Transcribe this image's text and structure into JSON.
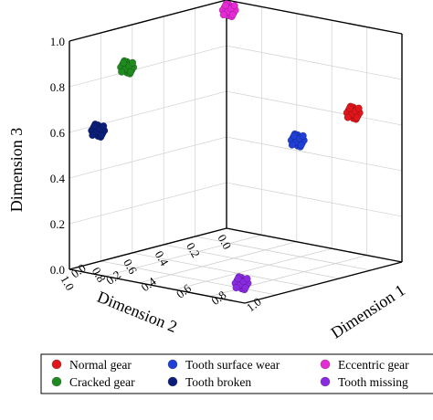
{
  "chart_data": {
    "type": "scatter",
    "dimensions": 3,
    "xlabel": "Dimension 1",
    "ylabel": "Dimension 2",
    "zlabel": "Dimension 3",
    "xlim": [
      0,
      1
    ],
    "ylim": [
      0,
      1
    ],
    "zlim": [
      0,
      1
    ],
    "ticks": [
      "0.0",
      "0.2",
      "0.4",
      "0.6",
      "0.8",
      "1.0"
    ],
    "grid": true,
    "legend_position": "bottom",
    "series": [
      {
        "name": "Normal gear",
        "color": "#e0161b",
        "centroid": {
          "x": 0.83,
          "y": 0.12,
          "z": 0.65
        }
      },
      {
        "name": "Cracked gear",
        "color": "#1f8a1f",
        "centroid": {
          "x": 0.06,
          "y": 0.7,
          "z": 0.84
        }
      },
      {
        "name": "Tooth surface wear",
        "color": "#1f3fd6",
        "centroid": {
          "x": 0.62,
          "y": 0.24,
          "z": 0.52
        }
      },
      {
        "name": "Tooth broken",
        "color": "#0b1f7a",
        "centroid": {
          "x": 0.1,
          "y": 0.93,
          "z": 0.61
        }
      },
      {
        "name": "Eccentric gear",
        "color": "#e62ad6",
        "centroid": {
          "x": 0.05,
          "y": 0.04,
          "z": 0.97
        }
      },
      {
        "name": "Tooth missing",
        "color": "#8a2be2",
        "centroid": {
          "x": 0.74,
          "y": 0.73,
          "z": 0.0
        }
      }
    ]
  }
}
